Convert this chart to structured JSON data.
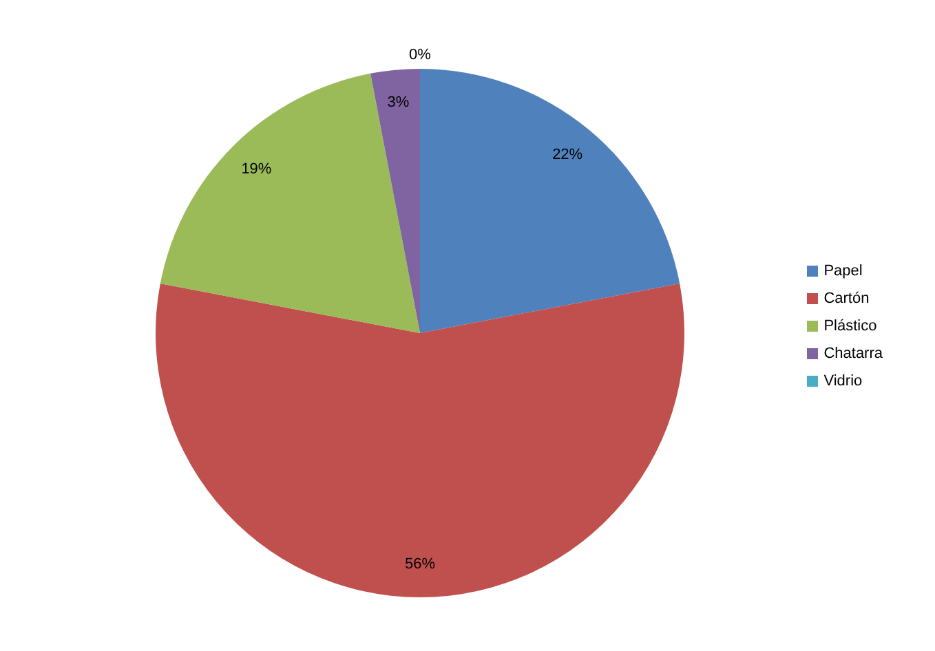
{
  "chart_data": {
    "type": "pie",
    "categories": [
      "Papel",
      "Cartón",
      "Plástico",
      "Chatarra",
      "Vidrio"
    ],
    "values": [
      22,
      56,
      19,
      3,
      0
    ],
    "colors": [
      "#4f81bd",
      "#c0504d",
      "#9bbb59",
      "#8064a2",
      "#4bacc6"
    ],
    "value_labels": [
      "22%",
      "56%",
      "19%",
      "3%",
      "0%"
    ],
    "legend": "right"
  }
}
